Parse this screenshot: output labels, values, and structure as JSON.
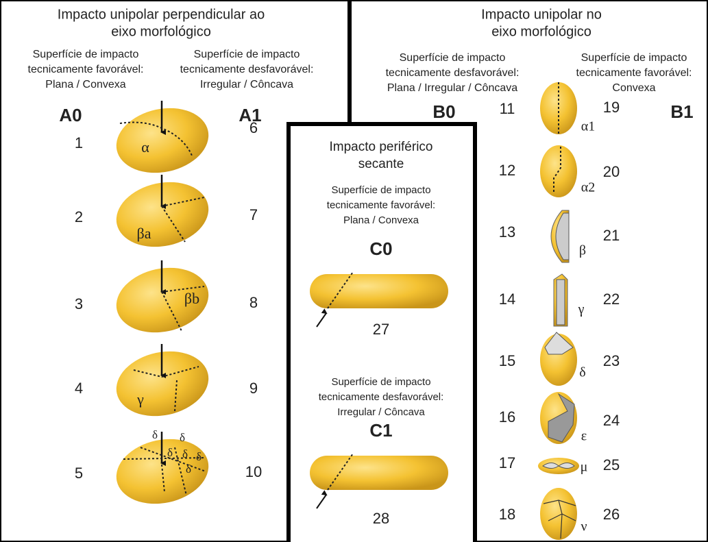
{
  "left_panel": {
    "title": [
      "Impacto unipolar perpendicular ao",
      "eixo morfológico"
    ],
    "columns": [
      {
        "heading": [
          "Superfície de impacto",
          "tecnicamente favorável:",
          "Plana / Convexa"
        ],
        "label": "A0",
        "numbers": [
          1,
          2,
          3,
          4,
          5
        ]
      },
      {
        "heading": [
          "Superfície de impacto",
          "tecnicamente desfavorável:",
          "Irregular / Côncava"
        ],
        "label": "A1",
        "numbers": [
          6,
          7,
          8,
          9,
          10
        ]
      }
    ],
    "shape_labels": [
      "α",
      "βa",
      "βb",
      "γ"
    ],
    "delta_labels": [
      "δ",
      "δ",
      "δ",
      "δ",
      "δ",
      "δ"
    ]
  },
  "right_panel": {
    "title": [
      "Impacto unipolar no",
      "eixo morfológico"
    ],
    "columns": [
      {
        "heading": [
          "Superfície de impacto",
          "tecnicamente desfavorável:",
          "Plana / Irregular / Côncava"
        ],
        "label": "B0",
        "numbers": [
          11,
          12,
          13,
          14,
          15,
          16,
          17,
          18
        ]
      },
      {
        "heading": [
          "Superfície de impacto",
          "tecnicamente favorável:",
          "Convexa"
        ],
        "label": "B1",
        "numbers": [
          19,
          20,
          21,
          22,
          23,
          24,
          25,
          26
        ]
      }
    ],
    "shape_labels": [
      "α1",
      "α2",
      "β",
      "γ",
      "δ",
      "ε",
      "μ",
      "ν"
    ]
  },
  "center_panel": {
    "title": [
      "Impacto periférico",
      "secante"
    ],
    "sections": [
      {
        "heading": [
          "Superfície de impacto",
          "tecnicamente favorável:",
          "Plana / Convexa"
        ],
        "label": "C0",
        "number": 27
      },
      {
        "heading": [
          "Superfície de impacto",
          "tecnicamente desfavorável:",
          "Irregular / Côncava"
        ],
        "label": "C1",
        "number": 28
      }
    ]
  }
}
